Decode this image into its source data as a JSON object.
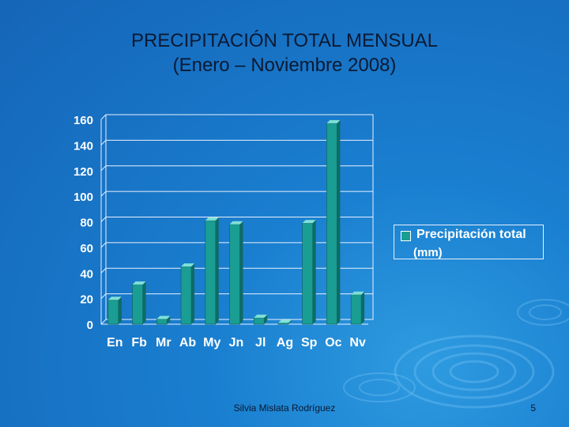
{
  "slide": {
    "title_line1": "PRECIPITACIÓN TOTAL MENSUAL",
    "title_line2": "(Enero – Noviembre 2008)",
    "footer": "Silvia Mislata Rodríguez",
    "page_number": "5"
  },
  "legend": {
    "line1": "Precipitación total",
    "line2": "(mm)"
  },
  "colors": {
    "bar_face": "#1a9d93",
    "bar_side": "#0e6b66",
    "bar_top": "#7fe0d8",
    "axis_text": "#ffffff",
    "grid": "#e8f1ff"
  },
  "chart_data": {
    "type": "bar",
    "title": "PRECIPITACIÓN TOTAL MENSUAL (Enero – Noviembre 2008)",
    "categories": [
      "En",
      "Fb",
      "Mr",
      "Ab",
      "My",
      "Jn",
      "Jl",
      "Ag",
      "Sp",
      "Oc",
      "Nv"
    ],
    "series": [
      {
        "name": "Precipitación total (mm)",
        "values": [
          19,
          31,
          4,
          45,
          81,
          78,
          5,
          1,
          79,
          157,
          23
        ]
      }
    ],
    "yticks": [
      0,
      20,
      40,
      60,
      80,
      100,
      120,
      140,
      160
    ],
    "ylim": [
      0,
      160
    ],
    "xlabel": "",
    "ylabel": "",
    "grid": true,
    "legend_position": "right"
  }
}
